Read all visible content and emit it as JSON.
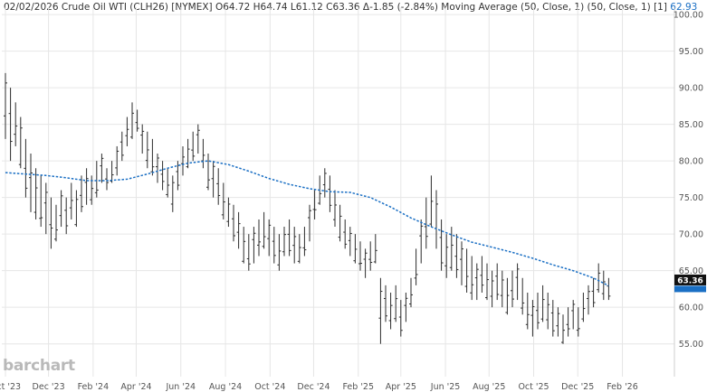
{
  "header": {
    "date": "02/02/2026",
    "symbol": "Crude Oil WTI (CLH26) [NYMEX]",
    "ohlc": "O64.72 H64.74 L61.12 C63.36 Δ-1.85 (-2.84%)",
    "indicator": "Moving Average (50, Close, 1)",
    "indicator_params": "(50, Close, 1) [1]",
    "indicator_value": "62.93"
  },
  "watermark": "barchart",
  "colors": {
    "bars": "#2b2b2b",
    "ma": "#1a6fc4",
    "grid": "#e6e6e6",
    "last_badge": "#111111",
    "ma_badge": "#1a6fc4"
  },
  "chart_data": {
    "type": "ohlc-bar",
    "y_ticks": [
      "55.00",
      "60.00",
      "65.00",
      "70.00",
      "75.00",
      "80.00",
      "85.00",
      "90.00",
      "95.00",
      "100.00"
    ],
    "ylim": [
      52,
      101
    ],
    "x_ticks": [
      {
        "label": "Oct '23",
        "week": 0
      },
      {
        "label": "Dec '23",
        "week": 8.5
      },
      {
        "label": "Feb '24",
        "week": 17.3
      },
      {
        "label": "Apr '24",
        "week": 25.8
      },
      {
        "label": "Jun '24",
        "week": 34.6
      },
      {
        "label": "Aug '24",
        "week": 43.4
      },
      {
        "label": "Oct '24",
        "week": 52.2
      },
      {
        "label": "Dec '24",
        "week": 60.8
      },
      {
        "label": "Feb '25",
        "week": 69.6
      },
      {
        "label": "Apr '25",
        "week": 78.0
      },
      {
        "label": "Jun '25",
        "week": 86.8
      },
      {
        "label": "Aug '25",
        "week": 95.4
      },
      {
        "label": "Oct '25",
        "week": 104.2
      },
      {
        "label": "Dec '25",
        "week": 112.9
      },
      {
        "label": "Feb '26",
        "week": 121.7
      }
    ],
    "last_price": "63.36",
    "ma_last": "62.93",
    "bars_hl": [
      [
        92,
        83
      ],
      [
        90,
        80
      ],
      [
        88,
        82
      ],
      [
        86,
        79
      ],
      [
        83,
        75
      ],
      [
        81,
        73
      ],
      [
        79,
        72
      ],
      [
        78,
        71
      ],
      [
        77,
        70
      ],
      [
        75,
        68
      ],
      [
        74,
        69
      ],
      [
        76,
        71
      ],
      [
        75,
        70
      ],
      [
        77,
        72
      ],
      [
        76,
        71
      ],
      [
        78,
        73
      ],
      [
        79,
        74
      ],
      [
        78,
        74
      ],
      [
        80,
        75
      ],
      [
        81,
        77
      ],
      [
        79,
        76
      ],
      [
        80,
        77
      ],
      [
        82,
        78
      ],
      [
        84,
        80
      ],
      [
        86,
        82
      ],
      [
        88,
        83
      ],
      [
        87,
        84
      ],
      [
        85,
        81
      ],
      [
        84,
        79
      ],
      [
        83,
        78
      ],
      [
        81,
        77
      ],
      [
        80,
        76
      ],
      [
        79,
        75
      ],
      [
        78,
        73
      ],
      [
        80,
        76
      ],
      [
        82,
        78
      ],
      [
        83,
        79
      ],
      [
        84,
        80
      ],
      [
        85,
        81
      ],
      [
        83,
        79
      ],
      [
        81,
        76
      ],
      [
        80,
        75
      ],
      [
        79,
        74
      ],
      [
        77,
        72
      ],
      [
        75,
        71
      ],
      [
        74,
        69
      ],
      [
        73,
        68
      ],
      [
        71,
        66
      ],
      [
        70,
        65
      ],
      [
        71,
        66
      ],
      [
        72,
        67
      ],
      [
        73,
        68
      ],
      [
        72,
        67
      ],
      [
        71,
        66
      ],
      [
        70,
        65
      ],
      [
        71,
        67
      ],
      [
        72,
        67
      ],
      [
        71,
        66
      ],
      [
        70,
        66
      ],
      [
        71,
        67
      ],
      [
        74,
        69
      ],
      [
        76,
        72
      ],
      [
        78,
        74
      ],
      [
        79,
        75
      ],
      [
        78,
        73
      ],
      [
        76,
        71
      ],
      [
        74,
        69
      ],
      [
        72,
        68
      ],
      [
        71,
        67
      ],
      [
        70,
        66
      ],
      [
        69,
        65
      ],
      [
        68,
        64
      ],
      [
        69,
        65
      ],
      [
        70,
        66
      ],
      [
        64,
        55
      ],
      [
        63,
        58
      ],
      [
        62,
        57
      ],
      [
        63,
        58
      ],
      [
        61,
        56
      ],
      [
        62,
        58
      ],
      [
        64,
        60
      ],
      [
        68,
        63
      ],
      [
        72,
        66
      ],
      [
        75,
        68
      ],
      [
        78,
        71
      ],
      [
        76,
        68
      ],
      [
        72,
        65
      ],
      [
        70,
        64
      ],
      [
        71,
        65
      ],
      [
        70,
        64
      ],
      [
        69,
        63
      ],
      [
        68,
        62
      ],
      [
        67,
        61
      ],
      [
        66,
        61
      ],
      [
        67,
        62
      ],
      [
        66,
        61
      ],
      [
        65,
        60
      ],
      [
        66,
        61
      ],
      [
        65,
        60
      ],
      [
        64,
        59
      ],
      [
        65,
        60
      ],
      [
        66,
        61
      ],
      [
        64,
        59
      ],
      [
        62,
        57
      ],
      [
        61,
        56
      ],
      [
        62,
        57
      ],
      [
        63,
        58
      ],
      [
        62,
        57
      ],
      [
        61,
        56
      ],
      [
        60,
        56
      ],
      [
        59,
        55
      ],
      [
        60,
        56
      ],
      [
        61,
        57
      ],
      [
        60,
        56
      ],
      [
        62,
        58
      ],
      [
        63,
        59
      ],
      [
        64,
        60
      ],
      [
        66,
        62
      ],
      [
        65,
        61
      ],
      [
        64,
        61
      ]
    ],
    "ma": [
      [
        0,
        78.4
      ],
      [
        4,
        78.2
      ],
      [
        8,
        78.0
      ],
      [
        12,
        77.7
      ],
      [
        16,
        77.3
      ],
      [
        20,
        77.3
      ],
      [
        24,
        77.5
      ],
      [
        28,
        78.2
      ],
      [
        32,
        79.0
      ],
      [
        36,
        79.7
      ],
      [
        40,
        80.0
      ],
      [
        44,
        79.5
      ],
      [
        48,
        78.6
      ],
      [
        52,
        77.6
      ],
      [
        56,
        76.8
      ],
      [
        60,
        76.2
      ],
      [
        64,
        75.8
      ],
      [
        68,
        75.7
      ],
      [
        72,
        75.0
      ],
      [
        76,
        73.7
      ],
      [
        80,
        72.2
      ],
      [
        84,
        71.0
      ],
      [
        88,
        69.9
      ],
      [
        92,
        68.9
      ],
      [
        96,
        68.2
      ],
      [
        100,
        67.5
      ],
      [
        104,
        66.7
      ],
      [
        108,
        65.8
      ],
      [
        112,
        65.0
      ],
      [
        116,
        64.0
      ],
      [
        119,
        62.93
      ]
    ]
  }
}
